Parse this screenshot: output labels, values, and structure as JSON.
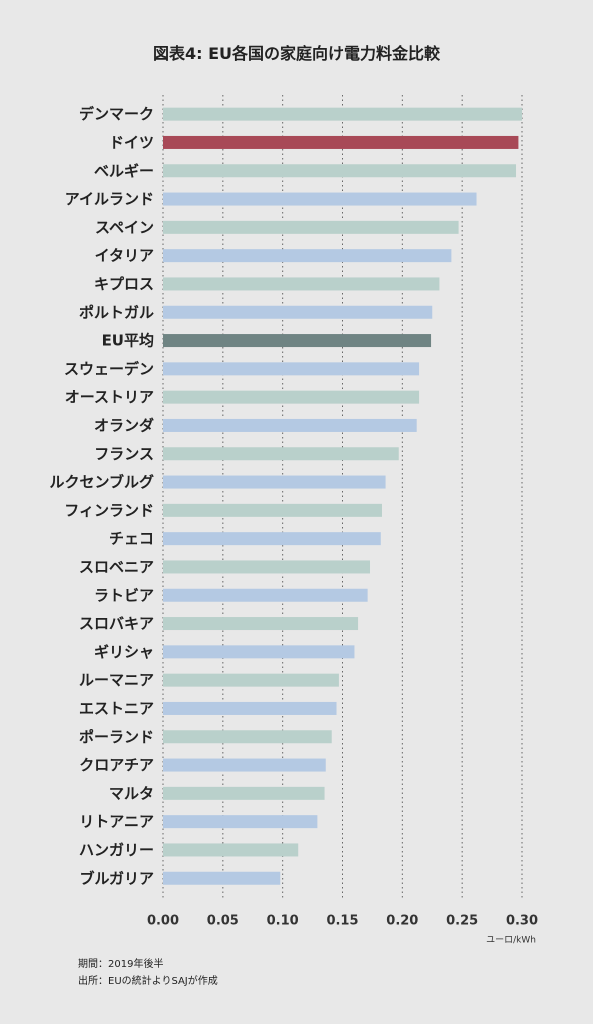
{
  "chart_data": {
    "type": "bar",
    "orientation": "horizontal",
    "title": "図表4: EU各国の家庭向け電力料金比較",
    "xlabel": "ユーロ/kWh",
    "xlim": [
      0,
      0.3
    ],
    "ticks": [
      "0.00",
      "0.05",
      "0.10",
      "0.15",
      "0.20",
      "0.25",
      "0.30"
    ],
    "tick_values": [
      0,
      0.05,
      0.1,
      0.15,
      0.2,
      0.25,
      0.3
    ],
    "grid": true,
    "categories": [
      "デンマーク",
      "ドイツ",
      "ベルギー",
      "アイルランド",
      "スペイン",
      "イタリア",
      "キプロス",
      "ポルトガル",
      "EU平均",
      "スウェーデン",
      "オーストリア",
      "オランダ",
      "フランス",
      "ルクセンブルグ",
      "フィンランド",
      "チェコ",
      "スロベニア",
      "ラトビア",
      "スロバキア",
      "ギリシャ",
      "ルーマニア",
      "エストニア",
      "ポーランド",
      "クロアチア",
      "マルタ",
      "リトアニア",
      "ハンガリー",
      "ブルガリア"
    ],
    "values": [
      0.3,
      0.297,
      0.295,
      0.262,
      0.247,
      0.241,
      0.231,
      0.225,
      0.224,
      0.214,
      0.214,
      0.212,
      0.197,
      0.186,
      0.183,
      0.182,
      0.173,
      0.171,
      0.163,
      0.16,
      0.147,
      0.145,
      0.141,
      0.136,
      0.135,
      0.129,
      0.113,
      0.098
    ]
  },
  "colors": {
    "teal": "#b9d0cb",
    "blue": "#b4c9e3",
    "highlight": "#a84957",
    "average": "#6f8483",
    "grid": "#666666"
  },
  "bar_colors": [
    "teal",
    "highlight",
    "teal",
    "blue",
    "teal",
    "blue",
    "teal",
    "blue",
    "average",
    "blue",
    "teal",
    "blue",
    "teal",
    "blue",
    "teal",
    "blue",
    "teal",
    "blue",
    "teal",
    "blue",
    "teal",
    "blue",
    "teal",
    "blue",
    "teal",
    "blue",
    "teal",
    "blue"
  ],
  "notes": {
    "period": "期間：2019年後半",
    "source": "出所：EUの統計よりSAJが作成"
  }
}
